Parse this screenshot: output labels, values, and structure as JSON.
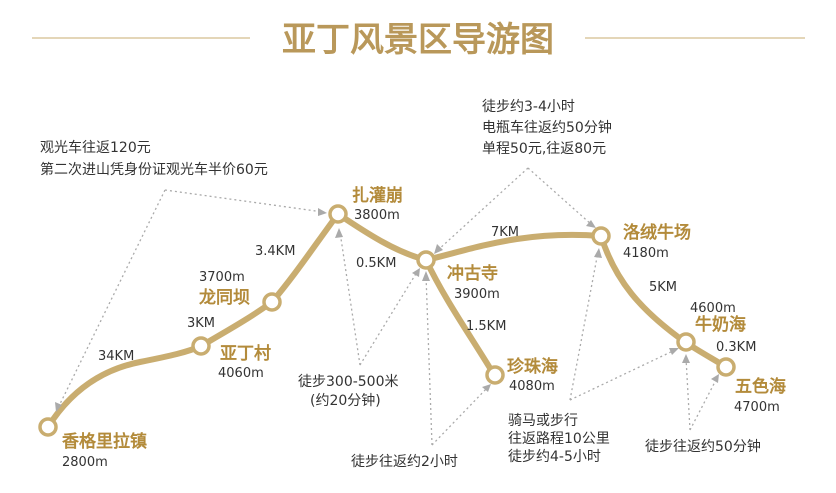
{
  "title": "亚丁风景区导游图",
  "colors": {
    "title": "#b9985a",
    "route": "#c9ad70",
    "place": "#b38b3b",
    "text": "#333333",
    "arrow": "#aaaaaa"
  },
  "places": {
    "xianggelila": {
      "name": "香格里拉镇",
      "elev": "2800m"
    },
    "yadingcun": {
      "name": "亚丁村",
      "elev": "4060m"
    },
    "longtongba": {
      "name": "龙同坝",
      "elev": "3700m"
    },
    "zhaguanbeng": {
      "name": "扎灌崩",
      "elev": "3800m"
    },
    "chonggusi": {
      "name": "冲古寺",
      "elev": "3900m"
    },
    "zhenzhuhai": {
      "name": "珍珠海",
      "elev": "4080m"
    },
    "luorong": {
      "name": "洛绒牛场",
      "elev": "4180m"
    },
    "niunaihai": {
      "name": "牛奶海",
      "elev": "4600m"
    },
    "wusehai": {
      "name": "五色海",
      "elev": "4700m"
    }
  },
  "distances": {
    "d1": "34KM",
    "d2": "3KM",
    "d3": "3.4KM",
    "d4": "0.5KM",
    "d5": "7KM",
    "d6": "1.5KM",
    "d7": "5KM",
    "d8": "0.3KM"
  },
  "notes": {
    "bus": [
      "观光车往返120元",
      "第二次进山凭身份证观光车半价60元"
    ],
    "ecar": [
      "徒步约3-4小时",
      "电瓶车往返约50分钟",
      "单程50元,往返80元"
    ],
    "walk1": [
      "徒步300-500米",
      "(约20分钟)"
    ],
    "walk2": [
      "徒步往返约2小时"
    ],
    "horse": [
      "骑马或步行",
      "往返路程10公里",
      "徒步约4-5小时"
    ],
    "walk3": [
      "徒步往返约50分钟"
    ]
  }
}
